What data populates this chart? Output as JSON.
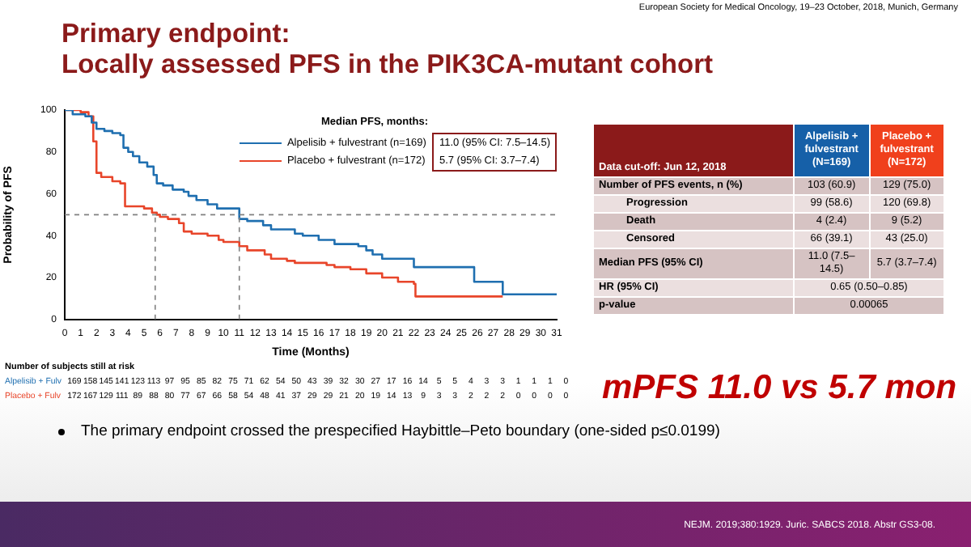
{
  "chart_data": [
    {
      "type": "step",
      "title": "Primary endpoint:",
      "subtitle": "Locally assessed PFS in the PIK3CA-mutant cohort",
      "xlabel": "Time (Months)",
      "ylabel": "Probability of PFS",
      "legend_title": "Median PFS, months:",
      "legend": "top right",
      "xlim": [
        0,
        31
      ],
      "xticks": [
        0,
        1,
        2,
        3,
        4,
        5,
        6,
        7,
        8,
        9,
        10,
        11,
        12,
        13,
        14,
        15,
        16,
        17,
        18,
        19,
        20,
        21,
        22,
        23,
        24,
        25,
        26,
        27,
        28,
        29,
        30,
        31
      ],
      "ylim": [
        0,
        100
      ],
      "yticks": [
        0,
        20,
        40,
        60,
        80,
        100
      ],
      "series": [
        {
          "name": "Alpelisib + fulvestrant (n=169)",
          "color": "#1f6fb0",
          "x": [
            0,
            0.5,
            1.3,
            1.7,
            2,
            2.5,
            3,
            3.5,
            3.7,
            4,
            4.3,
            4.7,
            5.2,
            5.6,
            5.8,
            6.2,
            6.8,
            7.5,
            7.8,
            8.3,
            9,
            9.6,
            11,
            11.5,
            12.5,
            13,
            14.5,
            15,
            16,
            17,
            18.5,
            19,
            19.4,
            20,
            22,
            25.8,
            27.6,
            31
          ],
          "values": [
            100,
            98,
            97,
            94,
            91,
            90,
            89,
            88,
            82,
            80,
            78,
            75,
            73,
            69,
            65,
            64,
            62,
            61,
            59,
            57,
            55,
            53,
            48,
            47,
            45,
            43,
            41,
            40,
            38,
            36,
            35,
            33,
            31,
            29,
            25,
            18,
            12,
            12
          ]
        },
        {
          "name": "Placebo + fulvestrant (n=172)",
          "color": "#e8452a",
          "x": [
            0,
            1,
            1.5,
            1.8,
            2,
            2.3,
            3,
            3.5,
            3.8,
            5,
            5.5,
            5.8,
            6,
            6.5,
            7.2,
            7.5,
            8,
            9,
            9.7,
            10,
            11,
            11.5,
            12.6,
            13,
            14,
            14.5,
            16.5,
            17,
            18,
            19,
            20,
            21,
            22,
            22.1,
            27.6
          ],
          "values": [
            100,
            99,
            97,
            85,
            70,
            68,
            66,
            65,
            54,
            53,
            51,
            50,
            49,
            48,
            46,
            42,
            41,
            40,
            38,
            37,
            35,
            33,
            31,
            29,
            28,
            27,
            26,
            25,
            24,
            22,
            20,
            18,
            17,
            11,
            11
          ]
        }
      ],
      "ref_lines": [
        {
          "axis": "y",
          "value": 50,
          "line_style": "dashed",
          "color": "#808080"
        },
        {
          "axis": "x",
          "value": 5.7,
          "line_style": "dashed",
          "color": "#808080"
        },
        {
          "axis": "x",
          "value": 11,
          "line_style": "dashed",
          "color": "#808080"
        }
      ],
      "annotations": [
        "European Society for Medical Oncology, 19–23 October, 2018, Munich, Germany",
        "11.0 (95% CI: 7.5–14.5)",
        "5.7 (95% CI: 3.7–7.4)",
        "mPFS 11.0 vs 5.7 mon",
        "The primary endpoint crossed the prespecified Haybittle–Peto boundary (one-sided p≤0.0199)",
        "NEJM. 2019;380:1929. Juric. SABCS 2018. Abstr GS3-08."
      ]
    },
    {
      "type": "other",
      "title": "Number of subjects still at risk",
      "annotations": [
        "Alpelisib + Fulv",
        "169 158 145 141 123 113 97 95 85 82 75 71 62 54 50 43 39 32 30 27 17 16 14 5 5 4 3 3 1 1 1 0",
        "Placebo + Fulv",
        "172 167 129 111 89 88 80 77 67 66 58 54 48 41 37 29 29 21 20 19 14 13 9 3 3 2 2 2 0 0 0 0"
      ]
    },
    {
      "type": "other",
      "annotations": [
        "Data cut-off: Jun 12, 2018",
        "Alpelisib + fulvestrant (N=169)",
        "Placebo + fulvestrant (N=172)",
        "Number of PFS events, n (%)",
        "103 (60.9)",
        "129 (75.0)",
        "Progression",
        "99 (58.6)",
        "120 (69.8)",
        "Death",
        "4 (2.4)",
        "9 (5.2)",
        "Censored",
        "66 (39.1)",
        "43 (25.0)",
        "Median PFS (95% CI)",
        "11.0 (7.5–14.5)",
        "5.7 (3.7–7.4)",
        "HR (95% CI)",
        "0.65 (0.50–0.85)",
        "p-value",
        "0.00065"
      ]
    }
  ]
}
